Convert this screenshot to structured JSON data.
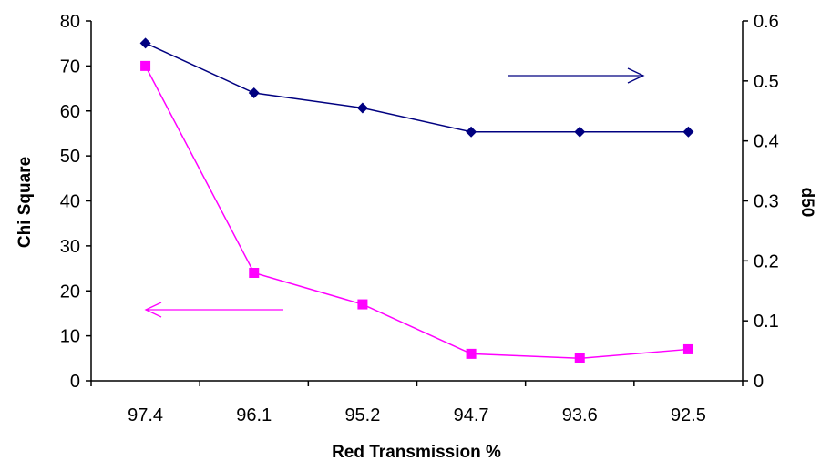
{
  "chart_data": {
    "type": "line",
    "categories": [
      "97.4",
      "96.1",
      "95.2",
      "94.7",
      "93.6",
      "92.5"
    ],
    "xlabel": "Red Transmission %",
    "ylabel": "Chi Square",
    "y2label": "d50",
    "ylim": [
      0,
      80
    ],
    "yticks": [
      0,
      10,
      20,
      30,
      40,
      50,
      60,
      70,
      80
    ],
    "y2lim": [
      0,
      0.6
    ],
    "y2ticks": [
      "0",
      "0.1",
      "0.2",
      "0.3",
      "0.4",
      "0.5",
      "0.6"
    ],
    "grid": false,
    "series": [
      {
        "axis": "right",
        "marker": "diamond",
        "color": "#000080",
        "values": [
          0.563,
          0.48,
          0.455,
          0.415,
          0.415,
          0.415
        ]
      },
      {
        "axis": "left",
        "marker": "square",
        "color": "#ff00ff",
        "values": [
          70,
          24,
          17,
          6,
          5,
          7
        ]
      }
    ],
    "annotations": [
      {
        "type": "arrow",
        "direction": "right",
        "color": "#000080",
        "points_to": "right-axis"
      },
      {
        "type": "arrow",
        "direction": "left",
        "color": "#ff00ff",
        "points_to": "left-axis"
      }
    ]
  }
}
